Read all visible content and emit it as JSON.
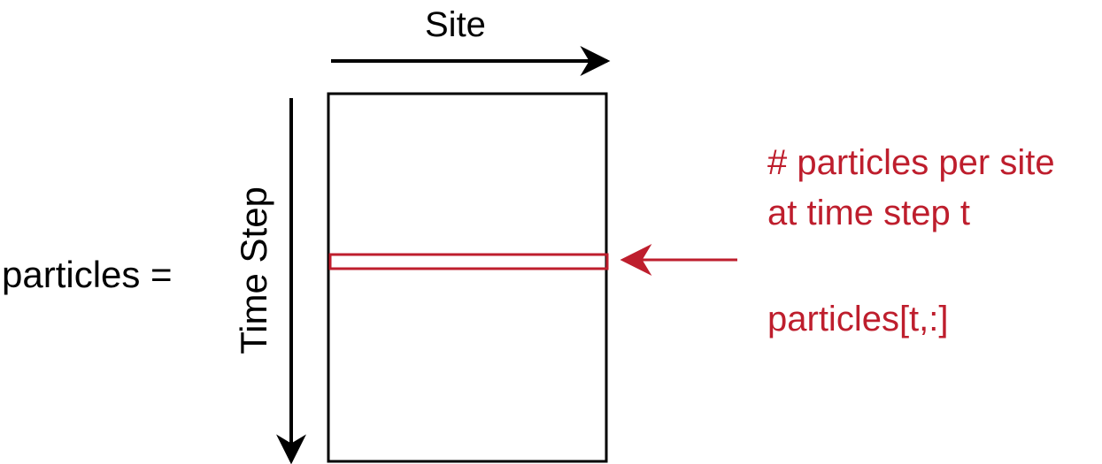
{
  "labels": {
    "site": "Site",
    "time_step": "Time Step",
    "lhs": "particles =",
    "description_line1": "# particles per site",
    "description_line2": "at time step t",
    "index_expr": "particles[t,:]"
  },
  "colors": {
    "accent": "#BE1E2D",
    "ink": "#000000",
    "background": "#FFFFFF"
  }
}
